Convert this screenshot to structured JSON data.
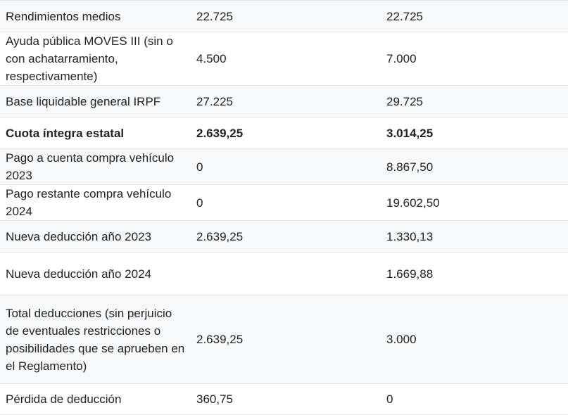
{
  "table": {
    "rows": [
      {
        "label": "Rendimientos medios",
        "v1": "22.725",
        "v2": "22.725",
        "bold": false
      },
      {
        "label": "Ayuda pública MOVES III (sin o con achatarramiento, respectivamente)",
        "v1": "4.500",
        "v2": "7.000",
        "bold": false
      },
      {
        "label": "Base liquidable general IRPF",
        "v1": "27.225",
        "v2": "29.725",
        "bold": false
      },
      {
        "label": "Cuota íntegra estatal",
        "v1": "2.639,25",
        "v2": "3.014,25",
        "bold": true
      },
      {
        "label": "Pago a cuenta compra vehículo 2023",
        "v1": "0",
        "v2": "8.867,50",
        "bold": false
      },
      {
        "label": "Pago restante compra vehículo 2024",
        "v1": "0",
        "v2": "19.602,50",
        "bold": false
      },
      {
        "label": "Nueva deducción año 2023",
        "v1": "2.639,25",
        "v2": "1.330,13",
        "bold": false
      },
      {
        "label": "Nueva deducción año 2024",
        "v1": "",
        "v2": "1.669,88",
        "bold": false
      },
      {
        "label": "Total deducciones (sin perjuicio de eventuales restricciones o posibilidades que se aprueben en el Reglamento)",
        "v1": "2.639,25",
        "v2": "3.000",
        "bold": false
      },
      {
        "label": "Pérdida de deducción",
        "v1": "360,75",
        "v2": "0",
        "bold": false
      }
    ]
  }
}
